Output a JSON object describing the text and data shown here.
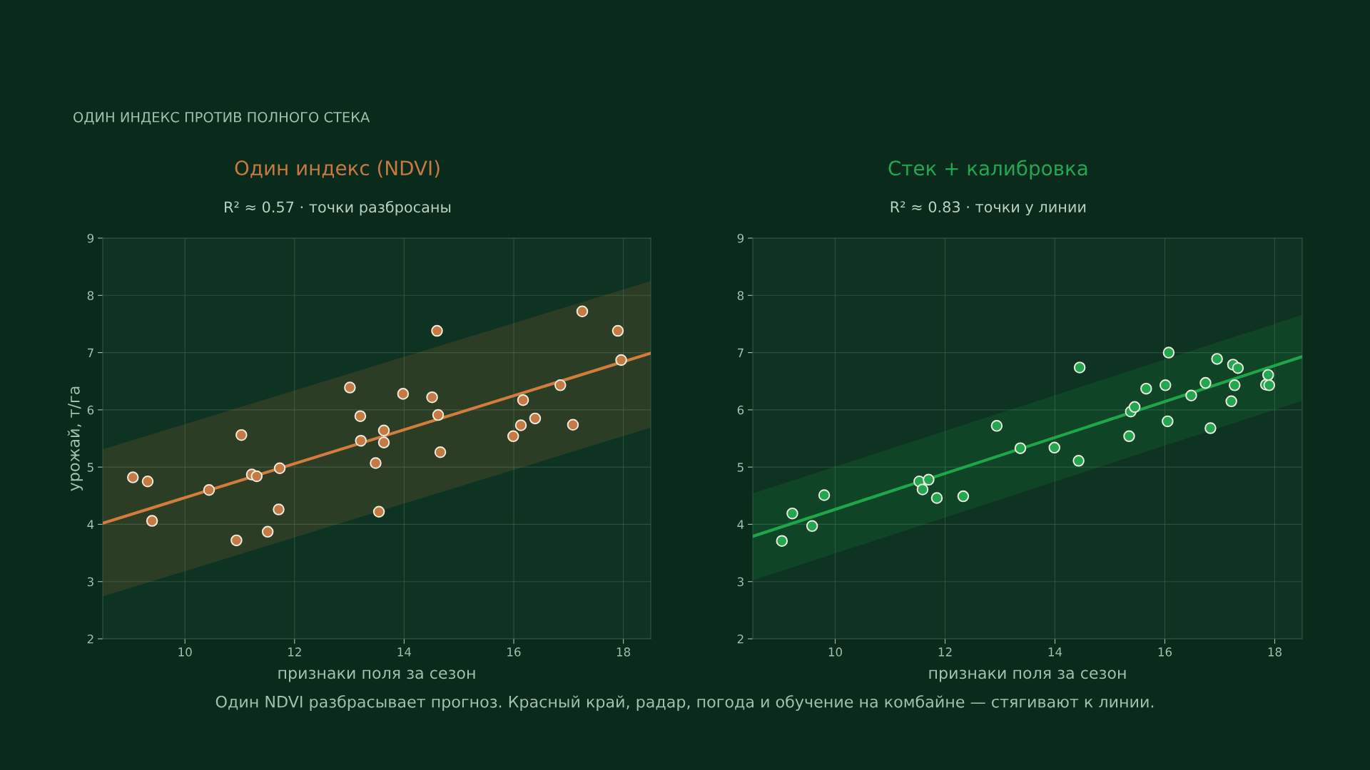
{
  "chart_data": [
    {
      "type": "scatter",
      "title": "Один индекс (NDVI)",
      "subtitle": "R² ≈ 0.57 · точки разбросаны",
      "xlabel": "признаки поля за сезон",
      "ylabel": "урожай, т/га",
      "annotations": [
        "ОДИН ИНДЕКС ПРОТИВ ПОЛНОГО СТЕКА"
      ],
      "xlim": [
        8.5,
        18.5
      ],
      "xticks": [
        10,
        12,
        14,
        16,
        18
      ],
      "ylim": [
        2,
        9
      ],
      "yticks": [
        2,
        3,
        4,
        5,
        6,
        7,
        8,
        9
      ],
      "grid": true,
      "series": [
        {
          "color": "#c47a42",
          "marker": "circle",
          "x": [
            9.05,
            9.32,
            9.4,
            10.44,
            10.94,
            11.03,
            11.22,
            11.31,
            11.51,
            11.71,
            11.73,
            13.01,
            13.2,
            13.21,
            13.48,
            13.54,
            13.63,
            13.63,
            13.98,
            14.51,
            14.6,
            14.62,
            14.66,
            15.99,
            16.13,
            16.17,
            16.39,
            16.85,
            17.08,
            17.25,
            17.9,
            17.96
          ],
          "values": [
            4.82,
            4.75,
            4.06,
            4.6,
            3.72,
            5.56,
            4.87,
            4.84,
            3.87,
            4.26,
            4.98,
            6.39,
            5.89,
            5.46,
            5.07,
            4.22,
            5.64,
            5.43,
            6.28,
            6.22,
            7.38,
            5.91,
            5.26,
            5.54,
            5.73,
            6.17,
            5.85,
            6.43,
            5.74,
            7.72,
            7.38,
            6.87
          ]
        },
        {
          "type": "line",
          "color": "#d27d3e",
          "x": [
            8.5,
            18.5
          ],
          "values": [
            4.02,
            6.99
          ],
          "lower": [
            2.74,
            5.69
          ],
          "upper": [
            5.31,
            8.25
          ]
        }
      ]
    },
    {
      "type": "scatter",
      "title": "Стек + калибровка",
      "subtitle": "R² ≈ 0.83 · точки у линии",
      "xlabel": "признаки поля за сезон",
      "annotations": [
        "Один NDVI разбрасывает прогноз. Красный край, радар, погода и обучение на комбайне — стягивают к линии."
      ],
      "xlim": [
        8.5,
        18.5
      ],
      "xticks": [
        10,
        12,
        14,
        16,
        18
      ],
      "ylim": [
        2,
        9
      ],
      "yticks": [
        2,
        3,
        4,
        5,
        6,
        7,
        8,
        9
      ],
      "grid": true,
      "series": [
        {
          "color": "#22a651",
          "marker": "circle",
          "x": [
            9.03,
            9.22,
            9.58,
            9.8,
            11.53,
            11.59,
            11.7,
            11.85,
            12.33,
            12.94,
            13.37,
            13.99,
            14.43,
            14.45,
            15.35,
            15.38,
            15.45,
            15.66,
            16.01,
            16.05,
            16.07,
            16.48,
            16.74,
            16.83,
            16.95,
            17.21,
            17.24,
            17.27,
            17.33,
            17.84,
            17.88,
            17.9
          ],
          "values": [
            3.71,
            4.19,
            3.97,
            4.51,
            4.75,
            4.61,
            4.78,
            4.46,
            4.49,
            5.72,
            5.33,
            5.34,
            5.11,
            6.74,
            5.54,
            5.97,
            6.05,
            6.37,
            6.43,
            5.8,
            7.0,
            6.25,
            6.47,
            5.68,
            6.89,
            6.15,
            6.79,
            6.43,
            6.73,
            6.44,
            6.61,
            6.43
          ]
        },
        {
          "type": "line",
          "color": "#1ea64a",
          "x": [
            8.5,
            18.5
          ],
          "values": [
            3.79,
            6.93
          ],
          "lower": [
            3.02,
            6.16
          ],
          "upper": [
            4.54,
            7.66
          ]
        }
      ]
    }
  ]
}
